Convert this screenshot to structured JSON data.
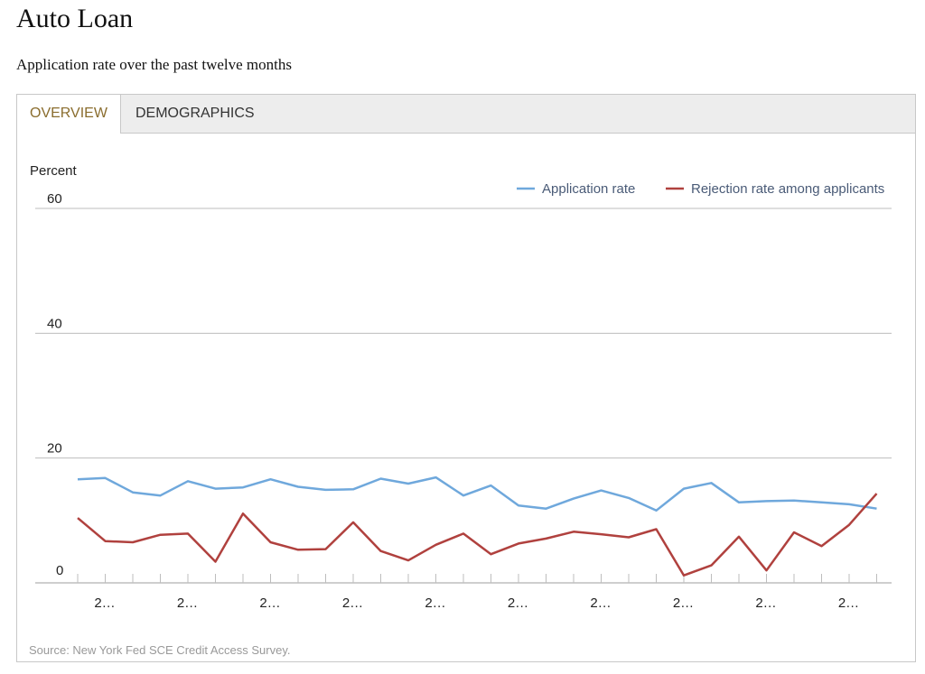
{
  "page": {
    "title": "Auto Loan",
    "subtitle": "Application rate over the past twelve months"
  },
  "tabs": [
    {
      "label": "OVERVIEW",
      "active": true
    },
    {
      "label": "DEMOGRAPHICS",
      "active": false
    }
  ],
  "source": "Source: New York Fed SCE Credit Access Survey.",
  "colors": {
    "application": "#6fa8dc",
    "rejection": "#b0413e",
    "active_tab": "#8a6d2e"
  },
  "chart_data": {
    "type": "line",
    "ylabel": "Percent",
    "ylim": [
      0,
      60
    ],
    "yticks": [
      0,
      20,
      40,
      60
    ],
    "xtick_labels": [
      "2…",
      "2…",
      "2…",
      "2…",
      "2…",
      "2…",
      "2…",
      "2…",
      "2…",
      "2…"
    ],
    "legend_position": "top-right",
    "grid": true,
    "series": [
      {
        "name": "Application rate",
        "values": [
          16.6,
          16.8,
          14.5,
          14.0,
          16.3,
          15.1,
          15.3,
          16.6,
          15.4,
          14.9,
          15.0,
          16.7,
          15.9,
          16.9,
          14.0,
          15.6,
          12.4,
          11.9,
          13.5,
          14.8,
          13.6,
          11.6,
          15.1,
          16.0,
          12.9,
          13.1,
          13.2,
          12.9,
          12.6,
          11.9
        ]
      },
      {
        "name": "Rejection rate among applicants",
        "values": [
          10.4,
          6.7,
          6.5,
          7.7,
          7.9,
          3.4,
          11.1,
          6.5,
          5.3,
          5.4,
          9.7,
          5.1,
          3.6,
          6.1,
          7.9,
          4.6,
          6.3,
          7.1,
          8.2,
          7.8,
          7.3,
          8.6,
          1.2,
          2.8,
          7.4,
          2.0,
          8.1,
          5.9,
          9.3,
          14.3
        ]
      }
    ]
  }
}
